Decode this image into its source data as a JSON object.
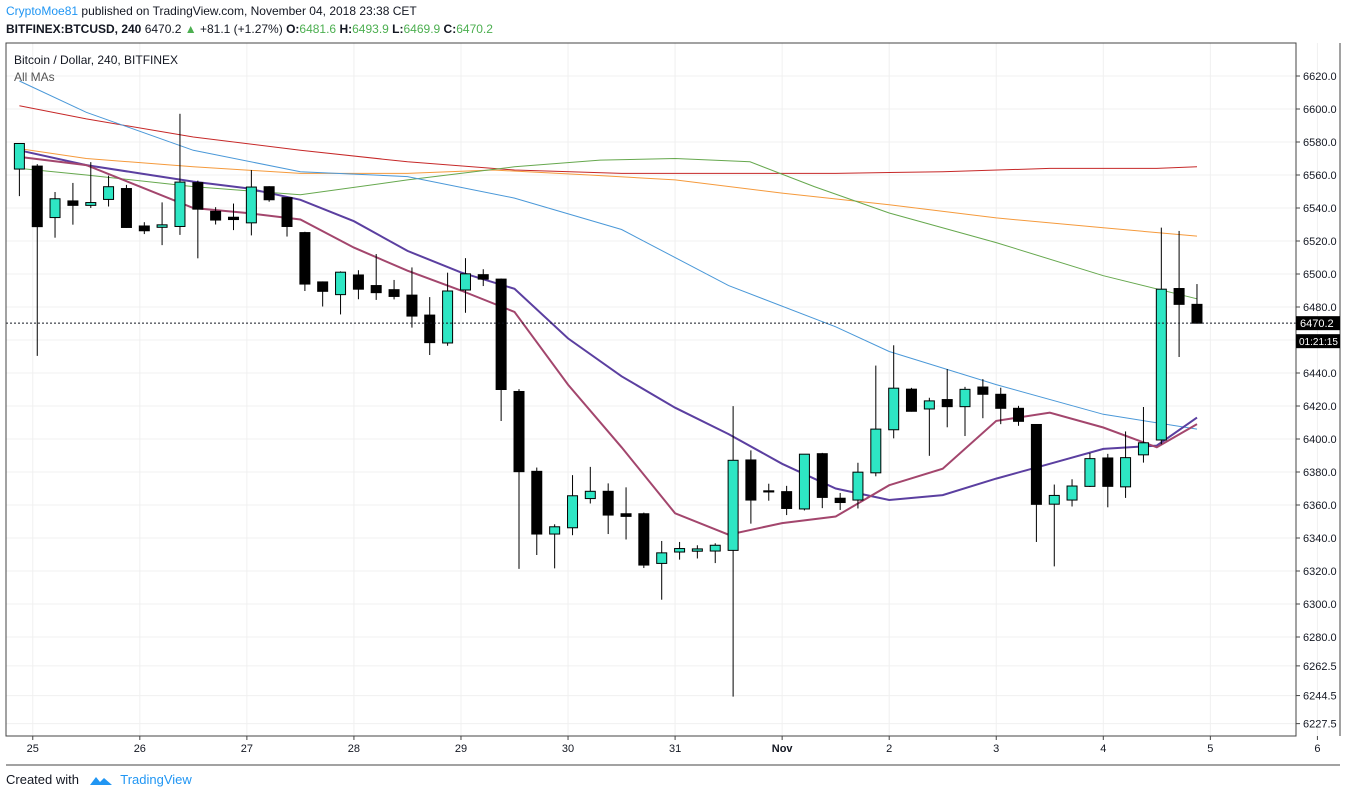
{
  "header": {
    "author": "CryptoMoe81",
    "published": "published on TradingView.com, November 04, 2018 23:38 CET",
    "symbol": "BITFINEX:BTCUSD, 240",
    "last": "6470.2",
    "change": "+81.1 (+1.27%)",
    "o_label": "O:",
    "o_value": "6481.6",
    "h_label": "H:",
    "h_value": "6493.9",
    "l_label": "L:",
    "l_value": "6469.9",
    "c_label": "C:",
    "c_value": "6470.2"
  },
  "legend": {
    "title": "Bitcoin / Dollar, 240, BITFINEX",
    "indicator": "All MAs"
  },
  "price_label": "6470.2",
  "countdown": "01:21:15",
  "footer": {
    "created_with": "Created with",
    "brand": "TradingView"
  },
  "colors": {
    "bull": "#2ee6c4",
    "bear": "#000000",
    "ma_red": "#c62828",
    "ma_orange": "#f59a3c",
    "ma_green": "#66a84e",
    "ma_blue": "#4a98d8",
    "ma_purple": "#5b3fa0",
    "ma_maroon": "#a3466d",
    "grid": "#f0f0f0"
  },
  "chart_data": {
    "type": "candlestick",
    "title": "Bitcoin / Dollar, 240, BITFINEX",
    "x_ticks": [
      "25",
      "26",
      "27",
      "28",
      "29",
      "30",
      "31",
      "Nov",
      "2",
      "3",
      "4",
      "5",
      "6"
    ],
    "y_ticks": [
      6227.5,
      6244.5,
      6262.5,
      6280.0,
      6300.0,
      6320.0,
      6340.0,
      6360.0,
      6380.0,
      6400.0,
      6420.0,
      6440.0,
      6460.0,
      6480.0,
      6500.0,
      6520.0,
      6540.0,
      6560.0,
      6580.0,
      6600.0,
      6620.0
    ],
    "ylim": [
      6220,
      6640
    ],
    "xlim": [
      24.75,
      31.55
    ],
    "last_price": 6470.2,
    "candles": [
      {
        "t": 24.875,
        "o": 6563.6,
        "h": 6576.9,
        "l": 6547.2,
        "c": 6579.1
      },
      {
        "t": 25.042,
        "o": 6565.4,
        "h": 6566.6,
        "l": 6450.4,
        "c": 6528.7
      },
      {
        "t": 25.208,
        "o": 6534.2,
        "h": 6549.7,
        "l": 6522.0,
        "c": 6545.6
      },
      {
        "t": 25.375,
        "o": 6544.3,
        "h": 6555.2,
        "l": 6529.9,
        "c": 6541.6
      },
      {
        "t": 25.542,
        "o": 6541.6,
        "h": 6567.8,
        "l": 6540.0,
        "c": 6543.3
      },
      {
        "t": 25.708,
        "o": 6545.2,
        "h": 6559.6,
        "l": 6540.9,
        "c": 6552.9
      },
      {
        "t": 25.875,
        "o": 6551.8,
        "h": 6554.0,
        "l": 6528.0,
        "c": 6528.2
      },
      {
        "t": 26.042,
        "o": 6529.1,
        "h": 6531.4,
        "l": 6524.2,
        "c": 6526.2
      },
      {
        "t": 26.208,
        "o": 6528.3,
        "h": 6543.4,
        "l": 6517.5,
        "c": 6529.8
      },
      {
        "t": 26.375,
        "o": 6528.8,
        "h": 6597.1,
        "l": 6523.7,
        "c": 6555.7
      },
      {
        "t": 26.542,
        "o": 6555.4,
        "h": 6556.6,
        "l": 6509.5,
        "c": 6539.3
      },
      {
        "t": 26.708,
        "o": 6538.0,
        "h": 6540.5,
        "l": 6530.0,
        "c": 6532.7
      },
      {
        "t": 26.875,
        "o": 6534.4,
        "h": 6542.7,
        "l": 6526.6,
        "c": 6533.0
      },
      {
        "t": 27.042,
        "o": 6531.0,
        "h": 6563.0,
        "l": 6523.4,
        "c": 6552.7
      },
      {
        "t": 27.208,
        "o": 6552.9,
        "h": 6553.2,
        "l": 6543.8,
        "c": 6545.0
      },
      {
        "t": 27.375,
        "o": 6546.3,
        "h": 6546.6,
        "l": 6522.7,
        "c": 6528.8
      },
      {
        "t": 27.542,
        "o": 6525.1,
        "h": 6525.6,
        "l": 6489.7,
        "c": 6493.9
      },
      {
        "t": 27.708,
        "o": 6495.2,
        "h": 6495.5,
        "l": 6480.3,
        "c": 6489.5
      },
      {
        "t": 27.875,
        "o": 6487.5,
        "h": 6501.6,
        "l": 6475.5,
        "c": 6501.1
      },
      {
        "t": 28.042,
        "o": 6499.4,
        "h": 6502.3,
        "l": 6484.7,
        "c": 6490.8
      },
      {
        "t": 28.208,
        "o": 6493.0,
        "h": 6512.1,
        "l": 6484.3,
        "c": 6488.7
      },
      {
        "t": 28.375,
        "o": 6490.5,
        "h": 6496.4,
        "l": 6484.6,
        "c": 6486.4
      },
      {
        "t": 28.542,
        "o": 6487.2,
        "h": 6504.0,
        "l": 6467.5,
        "c": 6474.5
      },
      {
        "t": 28.708,
        "o": 6475.1,
        "h": 6486.0,
        "l": 6450.9,
        "c": 6458.4
      },
      {
        "t": 28.875,
        "o": 6458.2,
        "h": 6500.8,
        "l": 6456.5,
        "c": 6489.7
      },
      {
        "t": 29.042,
        "o": 6490.3,
        "h": 6509.6,
        "l": 6476.5,
        "c": 6500.1
      },
      {
        "t": 29.208,
        "o": 6499.6,
        "h": 6502.9,
        "l": 6492.7,
        "c": 6496.9
      },
      {
        "t": 29.375,
        "o": 6496.9,
        "h": 6497.3,
        "l": 6410.9,
        "c": 6430.0
      },
      {
        "t": 29.542,
        "o": 6428.8,
        "h": 6430.2,
        "l": 6321.3,
        "c": 6380.2
      },
      {
        "t": 29.708,
        "o": 6380.4,
        "h": 6382.7,
        "l": 6329.7,
        "c": 6342.4
      },
      {
        "t": 29.875,
        "o": 6342.4,
        "h": 6348.3,
        "l": 6321.6,
        "c": 6346.8
      },
      {
        "t": 30.042,
        "o": 6346.2,
        "h": 6378.1,
        "l": 6341.7,
        "c": 6365.6
      },
      {
        "t": 30.208,
        "o": 6363.9,
        "h": 6383.1,
        "l": 6360.9,
        "c": 6368.3
      },
      {
        "t": 30.375,
        "o": 6368.3,
        "h": 6373.1,
        "l": 6342.4,
        "c": 6353.9
      },
      {
        "t": 30.542,
        "o": 6354.7,
        "h": 6370.7,
        "l": 6339.1,
        "c": 6353.1
      },
      {
        "t": 30.708,
        "o": 6354.7,
        "h": 6355.4,
        "l": 6321.8,
        "c": 6323.6
      },
      {
        "t": 30.875,
        "o": 6324.6,
        "h": 6338.2,
        "l": 6302.6,
        "c": 6331.0
      },
      {
        "t": 31.042,
        "o": 6331.5,
        "h": 6337.6,
        "l": 6326.9,
        "c": 6333.6
      },
      {
        "t": 31.208,
        "o": 6332.0,
        "h": 6335.6,
        "l": 6327.6,
        "c": 6333.4
      },
      {
        "t": 31.375,
        "o": 6332.1,
        "h": 6336.8,
        "l": 6324.8,
        "c": 6335.6
      }
    ],
    "candles_nov": [
      {
        "d": 31.542,
        "o": 6332.5,
        "h": 6419.9,
        "l": 6243.9,
        "c": 6387.1
      },
      {
        "d": 31.708,
        "o": 6387.3,
        "h": 6393.1,
        "l": 6348.7,
        "c": 6363.0
      },
      {
        "d": 31.875,
        "o": 6368.6,
        "h": 6372.9,
        "l": 6362.6,
        "c": 6367.9
      },
      {
        "d": 32.042,
        "o": 6368.1,
        "h": 6371.6,
        "l": 6353.9,
        "c": 6357.9
      },
      {
        "d": 32.208,
        "o": 6357.6,
        "h": 6390.7,
        "l": 6356.7,
        "c": 6390.8
      },
      {
        "d": 32.375,
        "o": 6391.1,
        "h": 6391.6,
        "l": 6358.1,
        "c": 6364.6
      },
      {
        "d": 32.542,
        "o": 6364.1,
        "h": 6367.3,
        "l": 6357.0,
        "c": 6361.5
      },
      {
        "d": 32.708,
        "o": 6363.0,
        "h": 6385.6,
        "l": 6357.9,
        "c": 6379.9
      },
      {
        "d": 32.875,
        "o": 6379.5,
        "h": 6444.5,
        "l": 6377.4,
        "c": 6406.0
      },
      {
        "d": 33.042,
        "o": 6405.6,
        "h": 6456.8,
        "l": 6400.4,
        "c": 6430.8
      },
      {
        "d": 33.208,
        "o": 6430.2,
        "h": 6431.0,
        "l": 6416.6,
        "c": 6416.8
      },
      {
        "d": 33.375,
        "o": 6418.2,
        "h": 6425.0,
        "l": 6389.8,
        "c": 6423.1
      },
      {
        "d": 33.542,
        "o": 6423.9,
        "h": 6442.4,
        "l": 6407.1,
        "c": 6419.6
      },
      {
        "d": 33.708,
        "o": 6419.6,
        "h": 6431.6,
        "l": 6401.8,
        "c": 6430.1
      },
      {
        "d": 33.875,
        "o": 6431.5,
        "h": 6436.3,
        "l": 6412.6,
        "c": 6427.1
      },
      {
        "d": 34.042,
        "o": 6427.1,
        "h": 6431.1,
        "l": 6409.0,
        "c": 6418.6
      },
      {
        "d": 34.208,
        "o": 6418.6,
        "h": 6420.1,
        "l": 6408.0,
        "c": 6410.7
      },
      {
        "d": 34.375,
        "o": 6408.8,
        "h": 6408.9,
        "l": 6337.6,
        "c": 6360.4
      },
      {
        "d": 34.542,
        "o": 6360.5,
        "h": 6372.4,
        "l": 6322.8,
        "c": 6365.8
      },
      {
        "d": 34.708,
        "o": 6363.0,
        "h": 6375.6,
        "l": 6359.1,
        "c": 6371.5
      },
      {
        "d": 34.875,
        "o": 6371.3,
        "h": 6391.5,
        "l": 6370.9,
        "c": 6388.1
      },
      {
        "d": 35.042,
        "o": 6388.5,
        "h": 6391.0,
        "l": 6358.6,
        "c": 6371.3
      },
      {
        "d": 35.208,
        "o": 6371.0,
        "h": 6404.6,
        "l": 6364.3,
        "c": 6388.7
      },
      {
        "d": 35.375,
        "o": 6390.4,
        "h": 6419.4,
        "l": 6385.7,
        "c": 6397.7
      },
      {
        "d": 35.542,
        "o": 6399.4,
        "h": 6528.1,
        "l": 6396.8,
        "c": 6490.8
      },
      {
        "d": 35.708,
        "o": 6491.2,
        "h": 6526.1,
        "l": 6449.7,
        "c": 6481.6
      },
      {
        "d": 35.875,
        "o": 6481.6,
        "h": 6493.9,
        "l": 6469.9,
        "c": 6470.2
      }
    ],
    "moving_averages": [
      {
        "color": "red",
        "points": [
          [
            24.875,
            6602
          ],
          [
            25.5,
            6594
          ],
          [
            26.5,
            6583
          ],
          [
            27.5,
            6575
          ],
          [
            28.5,
            6568
          ],
          [
            29.5,
            6563
          ],
          [
            30.5,
            6561
          ],
          [
            31.5,
            6561
          ],
          [
            32.5,
            6561
          ],
          [
            33.5,
            6562
          ],
          [
            34.5,
            6564
          ],
          [
            35.5,
            6564
          ],
          [
            35.875,
            6565
          ]
        ]
      },
      {
        "color": "orange",
        "points": [
          [
            24.875,
            6576
          ],
          [
            25.5,
            6570
          ],
          [
            26.5,
            6565
          ],
          [
            27.5,
            6561
          ],
          [
            28.5,
            6561
          ],
          [
            29.3,
            6563
          ],
          [
            30.2,
            6560
          ],
          [
            31.0,
            6557
          ],
          [
            32.0,
            6549
          ],
          [
            33.0,
            6542
          ],
          [
            34.0,
            6534
          ],
          [
            35.0,
            6528
          ],
          [
            35.875,
            6523
          ]
        ]
      },
      {
        "color": "green",
        "points": [
          [
            24.875,
            6564
          ],
          [
            25.5,
            6560
          ],
          [
            26.5,
            6553
          ],
          [
            27.5,
            6548
          ],
          [
            28.5,
            6557
          ],
          [
            29.5,
            6565
          ],
          [
            30.3,
            6569
          ],
          [
            31.0,
            6570
          ],
          [
            31.7,
            6568
          ],
          [
            32.3,
            6553
          ],
          [
            33.0,
            6537
          ],
          [
            34.0,
            6519
          ],
          [
            35.0,
            6499
          ],
          [
            35.875,
            6485
          ]
        ]
      },
      {
        "color": "blue",
        "points": [
          [
            24.875,
            6617
          ],
          [
            25.5,
            6598
          ],
          [
            26.5,
            6575
          ],
          [
            27.5,
            6562
          ],
          [
            28.5,
            6559
          ],
          [
            29.5,
            6546
          ],
          [
            30.5,
            6527
          ],
          [
            31.5,
            6493
          ],
          [
            32.5,
            6468
          ],
          [
            33.0,
            6453
          ],
          [
            34.0,
            6433
          ],
          [
            35.0,
            6415
          ],
          [
            35.875,
            6406
          ]
        ]
      },
      {
        "color": "purple",
        "points": [
          [
            24.875,
            6575
          ],
          [
            25.5,
            6566
          ],
          [
            26.0,
            6561
          ],
          [
            26.5,
            6556
          ],
          [
            27.0,
            6552
          ],
          [
            27.5,
            6545
          ],
          [
            28.0,
            6532
          ],
          [
            28.5,
            6514
          ],
          [
            29.0,
            6501
          ],
          [
            29.5,
            6491
          ],
          [
            30.0,
            6461
          ],
          [
            30.5,
            6438
          ],
          [
            31.0,
            6419
          ],
          [
            31.5,
            6403
          ],
          [
            32.0,
            6385
          ],
          [
            32.5,
            6370
          ],
          [
            33.0,
            6363
          ],
          [
            33.5,
            6366
          ],
          [
            34.0,
            6376
          ],
          [
            34.5,
            6385
          ],
          [
            35.0,
            6394
          ],
          [
            35.5,
            6396
          ],
          [
            35.875,
            6413
          ]
        ]
      },
      {
        "color": "maroon",
        "points": [
          [
            24.875,
            6571
          ],
          [
            25.5,
            6566
          ],
          [
            26.0,
            6553
          ],
          [
            26.5,
            6540
          ],
          [
            27.0,
            6537
          ],
          [
            27.5,
            6533
          ],
          [
            28.0,
            6516
          ],
          [
            28.5,
            6502
          ],
          [
            29.0,
            6490
          ],
          [
            29.5,
            6477
          ],
          [
            30.0,
            6433
          ],
          [
            30.5,
            6395
          ],
          [
            31.0,
            6355
          ],
          [
            31.5,
            6342
          ],
          [
            32.0,
            6349
          ],
          [
            32.5,
            6353
          ],
          [
            33.0,
            6372
          ],
          [
            33.5,
            6382
          ],
          [
            34.0,
            6411
          ],
          [
            34.5,
            6416
          ],
          [
            35.0,
            6407
          ],
          [
            35.5,
            6395
          ],
          [
            35.875,
            6409
          ]
        ]
      }
    ]
  }
}
